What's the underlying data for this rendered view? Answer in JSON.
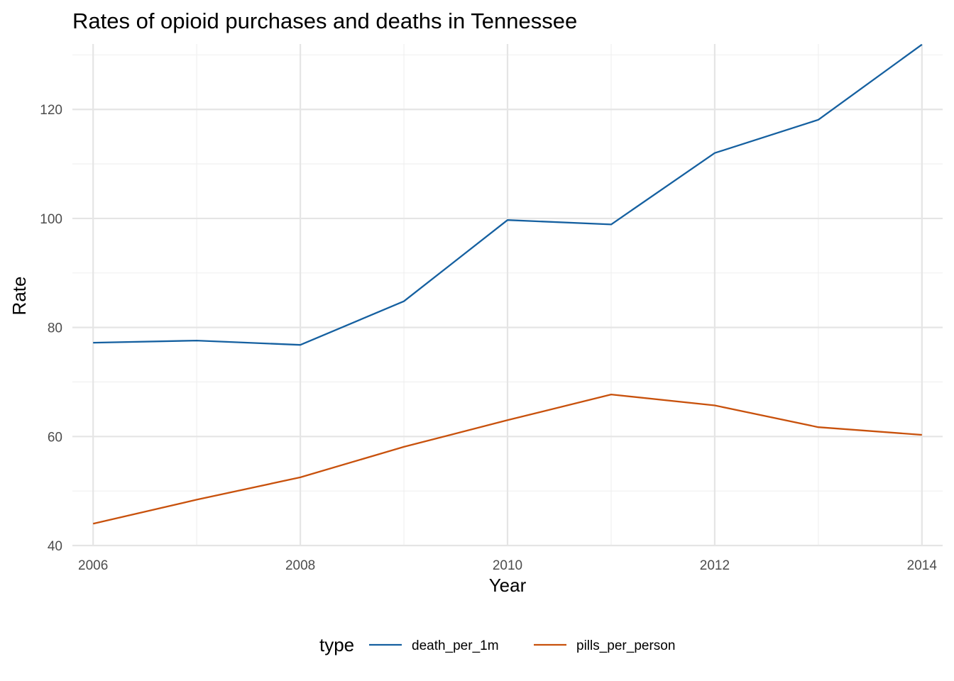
{
  "chart_data": {
    "type": "line",
    "title": "Rates of opioid purchases and deaths in Tennessee",
    "xlabel": "Year",
    "ylabel": "Rate",
    "x": [
      2006,
      2007,
      2008,
      2009,
      2010,
      2011,
      2012,
      2013,
      2014
    ],
    "xlim": [
      2005.8,
      2014.2
    ],
    "ylim": [
      40,
      132
    ],
    "x_ticks": [
      2006,
      2008,
      2010,
      2012,
      2014
    ],
    "x_minor_ticks": [
      2007,
      2009,
      2011,
      2013
    ],
    "y_ticks": [
      40,
      60,
      80,
      100,
      120
    ],
    "y_minor_ticks": [
      50,
      70,
      90,
      110,
      130
    ],
    "grid": true,
    "legend_position": "bottom",
    "legend_title": "type",
    "series": [
      {
        "name": "death_per_1m",
        "color": "#1560a0",
        "values": [
          77.2,
          77.6,
          76.8,
          84.8,
          99.7,
          98.9,
          112.0,
          118.1,
          131.9
        ]
      },
      {
        "name": "pills_per_person",
        "color": "#c8510c",
        "values": [
          44.0,
          48.4,
          52.5,
          58.1,
          63.0,
          67.7,
          65.7,
          61.7,
          60.3
        ]
      }
    ]
  }
}
